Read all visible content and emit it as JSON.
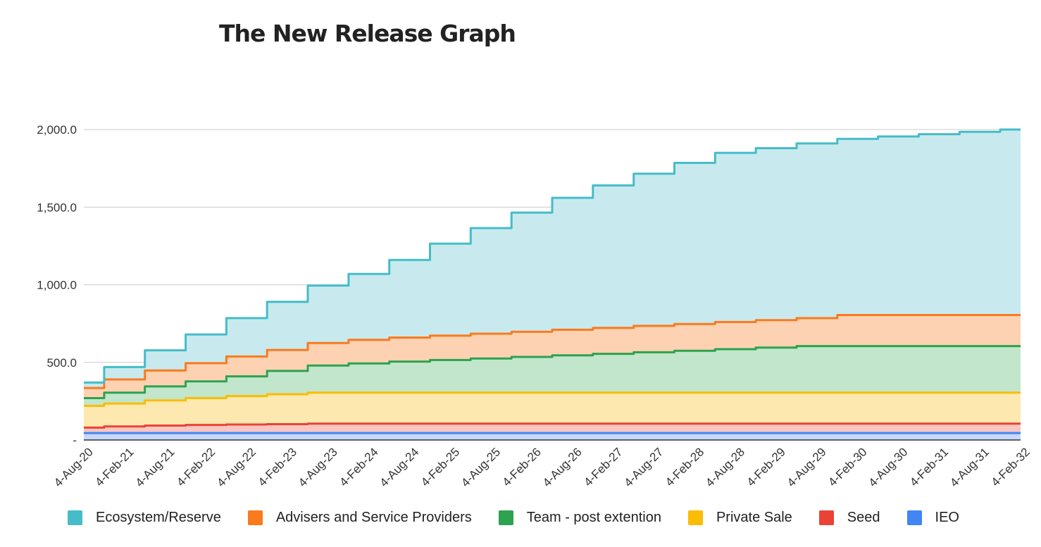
{
  "chart_data": {
    "type": "area",
    "title": "The New Release Graph",
    "xlabel": "",
    "ylabel": "",
    "stacked": true,
    "grid": true,
    "legend_position": "bottom",
    "ylim": [
      0,
      2000
    ],
    "y_ticks": [
      "-",
      "500.0",
      "1,000.0",
      "1,500.0",
      "2,000.0"
    ],
    "y_tick_values": [
      0,
      500,
      1000,
      1500,
      2000
    ],
    "categories": [
      "4-Aug-20",
      "4-Feb-21",
      "4-Aug-21",
      "4-Feb-22",
      "4-Aug-22",
      "4-Feb-23",
      "4-Aug-23",
      "4-Feb-24",
      "4-Aug-24",
      "4-Feb-25",
      "4-Aug-25",
      "4-Feb-26",
      "4-Aug-26",
      "4-Feb-27",
      "4-Aug-27",
      "4-Feb-28",
      "4-Aug-28",
      "4-Feb-29",
      "4-Aug-29",
      "4-Feb-30",
      "4-Aug-30",
      "4-Feb-31",
      "4-Aug-31",
      "4-Feb-32"
    ],
    "cumulative_totals": {
      "IEO": [
        45,
        45,
        45,
        45,
        45,
        45,
        45,
        45,
        45,
        45,
        45,
        45,
        45,
        45,
        45,
        45,
        45,
        45,
        45,
        45,
        45,
        45,
        45,
        45
      ],
      "Seed": [
        80,
        87,
        93,
        97,
        100,
        102,
        105,
        105,
        105,
        105,
        105,
        105,
        105,
        105,
        105,
        105,
        105,
        105,
        105,
        105,
        105,
        105,
        105,
        105
      ],
      "Private Sale": [
        220,
        235,
        255,
        270,
        283,
        295,
        305,
        305,
        305,
        305,
        305,
        305,
        305,
        305,
        305,
        305,
        305,
        305,
        305,
        305,
        305,
        305,
        305,
        305
      ],
      "Team - post extention": [
        270,
        305,
        345,
        378,
        410,
        445,
        480,
        493,
        505,
        515,
        525,
        535,
        545,
        555,
        565,
        575,
        585,
        595,
        605,
        605,
        605,
        605,
        605,
        605
      ],
      "Advisers and Service Providers": [
        335,
        390,
        448,
        495,
        538,
        580,
        625,
        645,
        660,
        672,
        685,
        697,
        710,
        722,
        735,
        747,
        760,
        772,
        785,
        805,
        805,
        805,
        805,
        805
      ],
      "Ecosystem/Reserve": [
        370,
        470,
        578,
        680,
        785,
        890,
        995,
        1070,
        1160,
        1265,
        1365,
        1465,
        1560,
        1640,
        1715,
        1785,
        1850,
        1880,
        1910,
        1940,
        1955,
        1970,
        1985,
        2000
      ]
    },
    "series": [
      {
        "name": "Ecosystem/Reserve",
        "color": "#45BCC8",
        "fill": "#C8EAEE"
      },
      {
        "name": "Advisers and Service Providers",
        "color": "#FA7A1E",
        "fill": "#FDD2B2"
      },
      {
        "name": "Team - post extention",
        "color": "#2DA24F",
        "fill": "#C2E6CB"
      },
      {
        "name": "Private Sale",
        "color": "#FBBC05",
        "fill": "#FDE9B0"
      },
      {
        "name": "Seed",
        "color": "#EA4335",
        "fill": "#F9C6C1"
      },
      {
        "name": "IEO",
        "color": "#4285F4",
        "fill": "#C8D9FB"
      }
    ]
  }
}
